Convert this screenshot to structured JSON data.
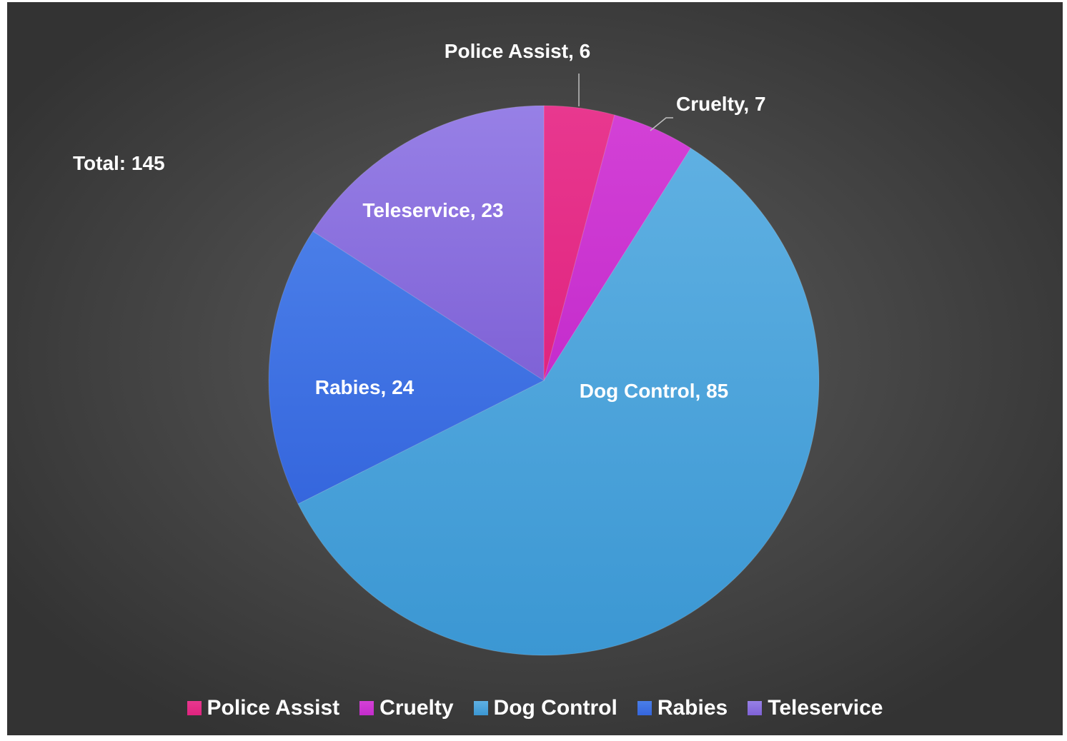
{
  "chart_data": {
    "type": "pie",
    "total_label": "Total: 145",
    "slices": [
      {
        "name": "Police Assist",
        "value": 6,
        "label": "Police Assist, 6",
        "color": "#e8388f",
        "color_dark": "#e0247f"
      },
      {
        "name": "Cruelty",
        "value": 7,
        "label": "Cruelty, 7",
        "color": "#d341d6",
        "color_dark": "#c42ccc"
      },
      {
        "name": "Dog Control",
        "value": 85,
        "label": "Dog Control, 85",
        "color": "#5fb0e2",
        "color_dark": "#3b97d3"
      },
      {
        "name": "Rabies",
        "value": 24,
        "label": "Rabies, 24",
        "color": "#4a7ee8",
        "color_dark": "#3566dd"
      },
      {
        "name": "Teleservice",
        "value": 23,
        "label": "Teleservice, 23",
        "color": "#9780e6",
        "color_dark": "#7f62d6"
      }
    ],
    "legend_position": "bottom"
  }
}
